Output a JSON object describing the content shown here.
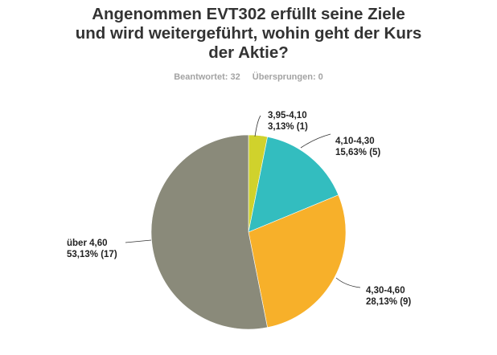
{
  "header": {
    "title_lines": [
      "Angenommen EVT302 erfüllt seine Ziele",
      "und wird weitergeführt, wohin geht der Kurs",
      "der Aktie?"
    ],
    "answered": "Beantwortet: 32",
    "skipped": "Übersprungen: 0"
  },
  "labels": {
    "s0": {
      "name": "3,95-4,10",
      "value": "3,13% (1)"
    },
    "s1": {
      "name": "4,10-4,30",
      "value": "15,63% (5)"
    },
    "s2": {
      "name": "4,30-4,60",
      "value": "28,13% (9)"
    },
    "s3": {
      "name": "über 4,60",
      "value": "53,13% (17)"
    }
  },
  "chart_data": {
    "type": "pie",
    "title": "Angenommen EVT302 erfüllt seine Ziele und wird weitergeführt, wohin geht der Kurs der Aktie?",
    "subtitle": "Beantwortet: 32  Übersprungen: 0",
    "categories": [
      "3,95-4,10",
      "4,10-4,30",
      "4,30-4,60",
      "über 4,60"
    ],
    "values": [
      3.13,
      15.63,
      28.13,
      53.13
    ],
    "counts": [
      1,
      5,
      9,
      17
    ],
    "colors": [
      "#d0d22c",
      "#33bdbf",
      "#f7b02a",
      "#8a8a7a"
    ],
    "start_angle": "12 o'clock, clockwise",
    "legend": "none (data labels with leader lines)"
  }
}
